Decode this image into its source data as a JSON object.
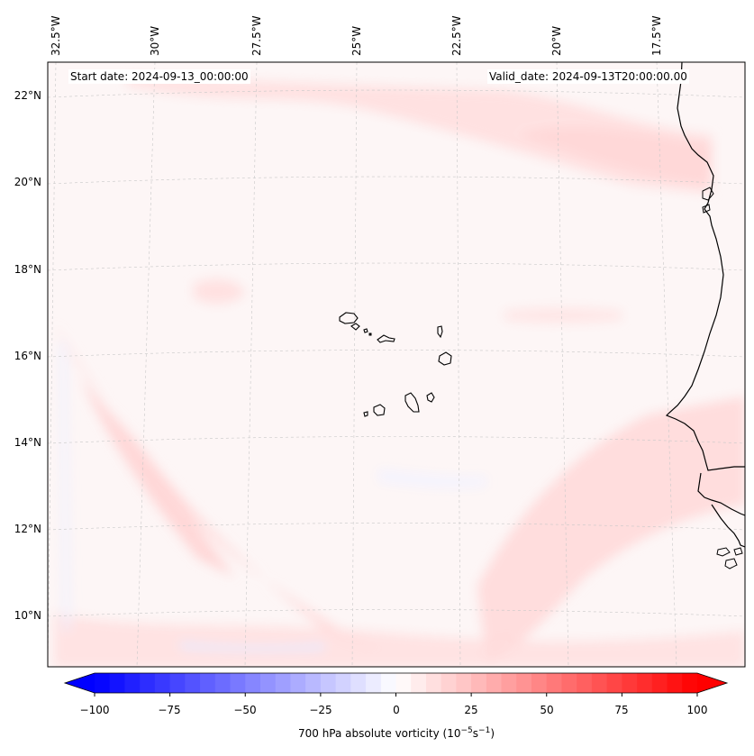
{
  "header": {
    "start_date": "Start date: 2024-09-13_00:00:00",
    "valid_date": "Valid_date: 2024-09-13T20:00:00.00"
  },
  "lon_labels": [
    "32.5°W",
    "30°W",
    "27.5°W",
    "25°W",
    "22.5°W",
    "20°W",
    "17.5°W"
  ],
  "lat_labels": [
    "22°N",
    "20°N",
    "18°N",
    "16°N",
    "14°N",
    "12°N",
    "10°N"
  ],
  "colorbar": {
    "ticks": [
      "−100",
      "−75",
      "−50",
      "−25",
      "0",
      "25",
      "50",
      "75",
      "100"
    ],
    "label_prefix": "700 hPa absolute vorticity (10",
    "label_exp1": "−5",
    "label_mid": "s",
    "label_exp2": "−1",
    "label_suffix": ")",
    "min": -100,
    "max": 100,
    "cmap": "bwr",
    "colors": {
      "negative_end": "#0000ff",
      "positive_end": "#ff0000",
      "center": "#ffffff"
    }
  },
  "map": {
    "lon_range": [
      -32.5,
      -15.5
    ],
    "lat_range": [
      9,
      22.5
    ],
    "field_name": "700 hPa absolute vorticity",
    "background_tint": "#fdf6f6",
    "gridlines": true
  }
}
